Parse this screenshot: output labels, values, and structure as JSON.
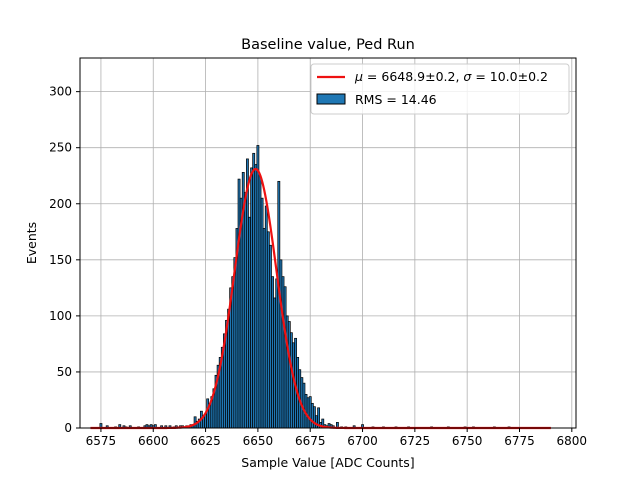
{
  "chart_data": {
    "type": "bar",
    "title": "Baseline value, Ped Run",
    "xlabel": "Sample Value [ADC Counts]",
    "ylabel": "Events",
    "xlim": [
      6565,
      6802
    ],
    "ylim": [
      0,
      330
    ],
    "xticks": [
      6575,
      6600,
      6625,
      6650,
      6675,
      6700,
      6725,
      6750,
      6775,
      6800
    ],
    "yticks": [
      0,
      50,
      100,
      150,
      200,
      250,
      300
    ],
    "grid": true,
    "legend_placement": "top-right",
    "bin_width": 1,
    "histogram": {
      "name": "RMS = 14.46",
      "color": "#1f77b4",
      "edgecolor": "#000000",
      "x": [
        6575,
        6578,
        6582,
        6584,
        6586,
        6587,
        6589,
        6593,
        6596,
        6597,
        6598,
        6599,
        6600,
        6601,
        6604,
        6606,
        6608,
        6610,
        6611,
        6612,
        6613,
        6614,
        6615,
        6616,
        6617,
        6618,
        6619,
        6620,
        6621,
        6622,
        6623,
        6624,
        6625,
        6626,
        6627,
        6628,
        6629,
        6630,
        6631,
        6632,
        6633,
        6634,
        6635,
        6636,
        6637,
        6638,
        6639,
        6640,
        6641,
        6642,
        6643,
        6644,
        6645,
        6646,
        6647,
        6648,
        6649,
        6650,
        6651,
        6652,
        6653,
        6654,
        6655,
        6656,
        6657,
        6658,
        6659,
        6660,
        6661,
        6662,
        6663,
        6664,
        6665,
        6666,
        6667,
        6668,
        6669,
        6670,
        6671,
        6672,
        6673,
        6674,
        6675,
        6676,
        6677,
        6678,
        6679,
        6680,
        6681,
        6682,
        6683,
        6684,
        6685,
        6686,
        6688,
        6690,
        6692,
        6696,
        6700,
        6705,
        6710,
        6716,
        6722,
        6733,
        6741,
        6749,
        6753,
        6763,
        6770
      ],
      "values": [
        4,
        2,
        1,
        3,
        2,
        1,
        2,
        1,
        2,
        3,
        2,
        3,
        2,
        3,
        2,
        2,
        2,
        1,
        2,
        1,
        2,
        2,
        1,
        2,
        2,
        3,
        3,
        10,
        6,
        8,
        15,
        11,
        12,
        26,
        22,
        28,
        35,
        47,
        56,
        63,
        72,
        84,
        96,
        106,
        125,
        135,
        152,
        178,
        222,
        205,
        228,
        210,
        240,
        188,
        232,
        245,
        235,
        252,
        225,
        205,
        178,
        198,
        175,
        163,
        135,
        116,
        133,
        220,
        150,
        135,
        126,
        100,
        95,
        85,
        76,
        80,
        63,
        52,
        45,
        40,
        30,
        27,
        28,
        22,
        19,
        11,
        18,
        5,
        8,
        3,
        2,
        4,
        3,
        2,
        5,
        1,
        1,
        2,
        3,
        1,
        1,
        1,
        1,
        1,
        1,
        1,
        1,
        1,
        1
      ]
    },
    "fit": {
      "name": "μ = 6648.9±0.2, σ = 10.0±0.2",
      "legend_mu": "μ",
      "legend_mu_text": " = 6648.9±0.2, ",
      "legend_sigma": "σ",
      "legend_sigma_text": " = 10.0±0.2",
      "color": "#ee1111",
      "mu": 6648.9,
      "sigma": 10.0,
      "amplitude": 231,
      "x_range": [
        6570,
        6790
      ]
    }
  }
}
